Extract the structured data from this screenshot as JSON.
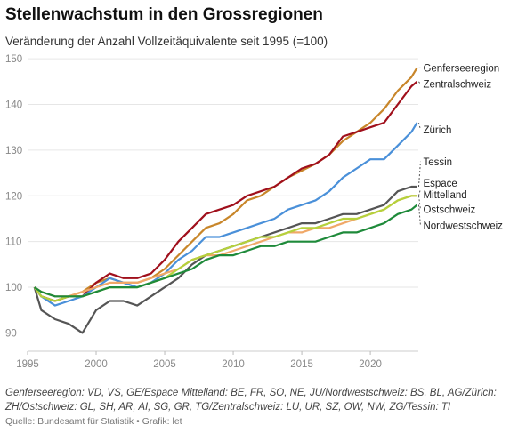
{
  "title": "Stellenwachstum in den Grossregionen",
  "subtitle": "Veränderung der Anzahl Vollzeitäquivalente seit 1995 (=100)",
  "footnote": "Genferseeregion: VD, VS, GE/Espace Mittelland: BE, FR, SO, NE, JU/Nordwestschweiz: BS, BL, AG/Zürich: ZH/Ostschweiz: GL, SH, AR, AI, SG, GR, TG/Zentralschweiz: LU, UR, SZ, OW, NW, ZG/Tessin: TI",
  "source": "Quelle: Bundesamt für Statistik • Grafik: let",
  "chart_data": {
    "type": "line",
    "title": "Stellenwachstum in den Grossregionen",
    "xlim": [
      1995,
      2023.5
    ],
    "ylim": [
      86,
      151
    ],
    "x_ticks": [
      1995,
      2000,
      2005,
      2010,
      2015,
      2020
    ],
    "y_ticks": [
      90,
      100,
      110,
      120,
      130,
      140,
      150
    ],
    "grid": true,
    "legend": "labels at line ends (right)",
    "series": [
      {
        "name": "Genferseeregion",
        "color": "#c8862a",
        "label_y": 148.0,
        "points": [
          [
            1995.5,
            100
          ],
          [
            1996,
            98
          ],
          [
            1997,
            97
          ],
          [
            1998,
            98
          ],
          [
            1999,
            99
          ],
          [
            2000,
            101
          ],
          [
            2001,
            102
          ],
          [
            2002,
            101
          ],
          [
            2003,
            101
          ],
          [
            2004,
            102
          ],
          [
            2005,
            104
          ],
          [
            2006,
            107
          ],
          [
            2007,
            110
          ],
          [
            2008,
            113
          ],
          [
            2009,
            114
          ],
          [
            2010,
            116
          ],
          [
            2011,
            119
          ],
          [
            2012,
            120
          ],
          [
            2013,
            122
          ],
          [
            2014,
            124
          ],
          [
            2015,
            125.5
          ],
          [
            2016,
            127
          ],
          [
            2017,
            129
          ],
          [
            2018,
            132
          ],
          [
            2019,
            134
          ],
          [
            2020,
            136
          ],
          [
            2021,
            139
          ],
          [
            2022,
            143
          ],
          [
            2023,
            146
          ],
          [
            2023.4,
            148
          ]
        ]
      },
      {
        "name": "Zentralschweiz",
        "color": "#a0101c",
        "label_y": 144.5,
        "points": [
          [
            1995.5,
            100
          ],
          [
            1996,
            98
          ],
          [
            1997,
            97
          ],
          [
            1998,
            98
          ],
          [
            1999,
            98
          ],
          [
            2000,
            101
          ],
          [
            2001,
            103
          ],
          [
            2002,
            102
          ],
          [
            2003,
            102
          ],
          [
            2004,
            103
          ],
          [
            2005,
            106
          ],
          [
            2006,
            110
          ],
          [
            2007,
            113
          ],
          [
            2008,
            116
          ],
          [
            2009,
            117
          ],
          [
            2010,
            118
          ],
          [
            2011,
            120
          ],
          [
            2012,
            121
          ],
          [
            2013,
            122
          ],
          [
            2014,
            124
          ],
          [
            2015,
            126
          ],
          [
            2016,
            127
          ],
          [
            2017,
            129
          ],
          [
            2018,
            133
          ],
          [
            2019,
            134
          ],
          [
            2020,
            135
          ],
          [
            2021,
            136
          ],
          [
            2022,
            140
          ],
          [
            2023,
            144
          ],
          [
            2023.4,
            145
          ]
        ]
      },
      {
        "name": "Zürich",
        "color": "#4a90d9",
        "label_y": 134.5,
        "points": [
          [
            1995.5,
            100
          ],
          [
            1996,
            98
          ],
          [
            1997,
            96
          ],
          [
            1998,
            97
          ],
          [
            1999,
            98
          ],
          [
            2000,
            100
          ],
          [
            2001,
            102
          ],
          [
            2002,
            101
          ],
          [
            2003,
            100
          ],
          [
            2004,
            101
          ],
          [
            2005,
            103
          ],
          [
            2006,
            106
          ],
          [
            2007,
            108
          ],
          [
            2008,
            111
          ],
          [
            2009,
            111
          ],
          [
            2010,
            112
          ],
          [
            2011,
            113
          ],
          [
            2012,
            114
          ],
          [
            2013,
            115
          ],
          [
            2014,
            117
          ],
          [
            2015,
            118
          ],
          [
            2016,
            119
          ],
          [
            2017,
            121
          ],
          [
            2018,
            124
          ],
          [
            2019,
            126
          ],
          [
            2020,
            128
          ],
          [
            2021,
            128
          ],
          [
            2022,
            131
          ],
          [
            2023,
            134
          ],
          [
            2023.4,
            136
          ]
        ]
      },
      {
        "name": "Tessin",
        "color": "#555555",
        "label_y": 127.5,
        "points": [
          [
            1995.5,
            100
          ],
          [
            1996,
            95
          ],
          [
            1997,
            93
          ],
          [
            1998,
            92
          ],
          [
            1999,
            90
          ],
          [
            2000,
            95
          ],
          [
            2001,
            97
          ],
          [
            2002,
            97
          ],
          [
            2003,
            96
          ],
          [
            2004,
            98
          ],
          [
            2005,
            100
          ],
          [
            2006,
            102
          ],
          [
            2007,
            105
          ],
          [
            2008,
            107
          ],
          [
            2009,
            108
          ],
          [
            2010,
            109
          ],
          [
            2011,
            110
          ],
          [
            2012,
            111
          ],
          [
            2013,
            112
          ],
          [
            2014,
            113
          ],
          [
            2015,
            114
          ],
          [
            2016,
            114
          ],
          [
            2017,
            115
          ],
          [
            2018,
            116
          ],
          [
            2019,
            116
          ],
          [
            2020,
            117
          ],
          [
            2021,
            118
          ],
          [
            2022,
            121
          ],
          [
            2023,
            122
          ],
          [
            2023.4,
            122
          ]
        ]
      },
      {
        "name": "Espace\nMittelland",
        "color": "#f0a868",
        "label_y": 121.5,
        "points": [
          [
            1995.5,
            100
          ],
          [
            1996,
            99
          ],
          [
            1997,
            98
          ],
          [
            1998,
            98
          ],
          [
            1999,
            99
          ],
          [
            2000,
            100
          ],
          [
            2001,
            101
          ],
          [
            2002,
            101
          ],
          [
            2003,
            101
          ],
          [
            2004,
            102
          ],
          [
            2005,
            103
          ],
          [
            2006,
            104
          ],
          [
            2007,
            106
          ],
          [
            2008,
            107
          ],
          [
            2009,
            107
          ],
          [
            2010,
            108
          ],
          [
            2011,
            109
          ],
          [
            2012,
            110
          ],
          [
            2013,
            111
          ],
          [
            2014,
            112
          ],
          [
            2015,
            112
          ],
          [
            2016,
            113
          ],
          [
            2017,
            113
          ],
          [
            2018,
            114
          ],
          [
            2019,
            115
          ],
          [
            2020,
            116
          ],
          [
            2021,
            117
          ],
          [
            2022,
            119
          ],
          [
            2023,
            120
          ],
          [
            2023.4,
            120
          ]
        ]
      },
      {
        "name": "Ostschweiz",
        "color": "#b5d13c",
        "label_y": 117.0,
        "points": [
          [
            1995.5,
            100
          ],
          [
            1996,
            98
          ],
          [
            1997,
            97
          ],
          [
            1998,
            98
          ],
          [
            1999,
            98
          ],
          [
            2000,
            99
          ],
          [
            2001,
            100
          ],
          [
            2002,
            100
          ],
          [
            2003,
            100
          ],
          [
            2004,
            101
          ],
          [
            2005,
            102
          ],
          [
            2006,
            104
          ],
          [
            2007,
            106
          ],
          [
            2008,
            107
          ],
          [
            2009,
            108
          ],
          [
            2010,
            109
          ],
          [
            2011,
            110
          ],
          [
            2012,
            111
          ],
          [
            2013,
            111
          ],
          [
            2014,
            112
          ],
          [
            2015,
            113
          ],
          [
            2016,
            113
          ],
          [
            2017,
            114
          ],
          [
            2018,
            115
          ],
          [
            2019,
            115
          ],
          [
            2020,
            116
          ],
          [
            2021,
            117
          ],
          [
            2022,
            119
          ],
          [
            2023,
            120
          ],
          [
            2023.4,
            120
          ]
        ]
      },
      {
        "name": "Nordwestschweiz",
        "color": "#1e8a3a",
        "label_y": 113.5,
        "points": [
          [
            1995.5,
            100
          ],
          [
            1996,
            99
          ],
          [
            1997,
            98
          ],
          [
            1998,
            98
          ],
          [
            1999,
            98
          ],
          [
            2000,
            99
          ],
          [
            2001,
            100
          ],
          [
            2002,
            100
          ],
          [
            2003,
            100
          ],
          [
            2004,
            101
          ],
          [
            2005,
            102
          ],
          [
            2006,
            103
          ],
          [
            2007,
            104
          ],
          [
            2008,
            106
          ],
          [
            2009,
            107
          ],
          [
            2010,
            107
          ],
          [
            2011,
            108
          ],
          [
            2012,
            109
          ],
          [
            2013,
            109
          ],
          [
            2014,
            110
          ],
          [
            2015,
            110
          ],
          [
            2016,
            110
          ],
          [
            2017,
            111
          ],
          [
            2018,
            112
          ],
          [
            2019,
            112
          ],
          [
            2020,
            113
          ],
          [
            2021,
            114
          ],
          [
            2022,
            116
          ],
          [
            2023,
            117
          ],
          [
            2023.4,
            118
          ]
        ]
      }
    ]
  }
}
